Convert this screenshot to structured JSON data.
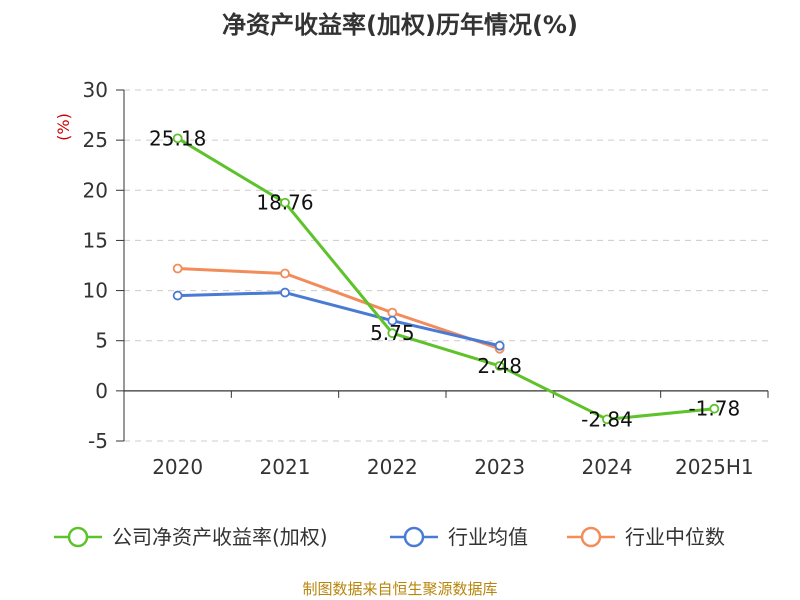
{
  "chart_data": {
    "type": "line",
    "title": "净资产收益率(加权)历年情况(%)",
    "ylabel": "(%)",
    "xlabel": "",
    "categories": [
      "2020",
      "2021",
      "2022",
      "2023",
      "2024",
      "2025H1"
    ],
    "ylim": [
      -5,
      30
    ],
    "yticks": [
      30,
      25,
      20,
      15,
      10,
      5,
      0,
      -5
    ],
    "grid": "horizontal-dashed",
    "legend_position": "bottom",
    "series": [
      {
        "name": "公司净资产收益率(加权)",
        "color": "#5ec22b",
        "values": [
          25.18,
          18.76,
          5.75,
          2.48,
          -2.84,
          -1.78
        ],
        "labels": [
          "25.18",
          "18.76",
          "5.75",
          "2.48",
          "-2.84",
          "-1.78"
        ]
      },
      {
        "name": "行业均值",
        "color": "#4a7bd4",
        "values": [
          9.5,
          9.8,
          7.0,
          4.5,
          null,
          null
        ]
      },
      {
        "name": "行业中位数",
        "color": "#f28c5a",
        "values": [
          12.2,
          11.7,
          7.8,
          4.2,
          null,
          null
        ]
      }
    ]
  },
  "footer": {
    "source": "制图数据来自恒生聚源数据库"
  }
}
